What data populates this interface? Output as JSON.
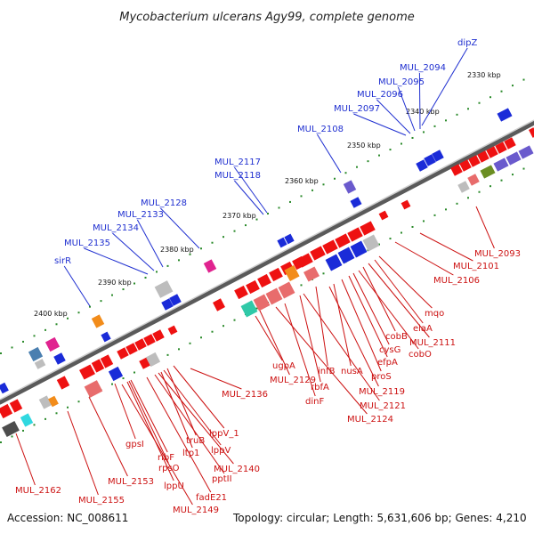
{
  "title": "Mycobacterium ulcerans Agy99, complete genome",
  "footer": {
    "accession": "Accession: NC_008611",
    "info": "Topology: circular; Length: 5,631,606 bp; Genes: 4,210"
  },
  "colors": {
    "forward_label": "#1f2fd0",
    "reverse_label": "#cc1111",
    "backbone": "#777777",
    "tick": "#2a8a2a"
  },
  "kbp_ticks": [
    "2330 kbp",
    "2340 kbp",
    "2350 kbp",
    "2360 kbp",
    "2370 kbp",
    "2380 kbp",
    "2390 kbp",
    "2400 kbp"
  ],
  "forward_genes": [
    "dipZ",
    "MUL_2094",
    "MUL_2095",
    "MUL_2096",
    "MUL_2097",
    "MUL_2108",
    "MUL_2117",
    "MUL_2118",
    "MUL_2128",
    "MUL_2133",
    "MUL_2134",
    "MUL_2135",
    "sirR"
  ],
  "reverse_genes": [
    "MUL_2093",
    "MUL_2101",
    "MUL_2106",
    "mqo",
    "elaA",
    "MUL_2111",
    "cobB",
    "cobO",
    "cysG",
    "efpA",
    "proS",
    "nusA",
    "infB",
    "MUL_2119",
    "rbfA",
    "MUL_2121",
    "ugpA",
    "dinF",
    "MUL_2124",
    "MUL_2129",
    "MUL_2136",
    "lppV_1",
    "truB",
    "lppV",
    "ltp1",
    "MUL_2140",
    "ribF",
    "pptII",
    "rpsO",
    "fadE21",
    "gpsI",
    "lppU",
    "MUL_2149",
    "MUL_2153",
    "MUL_2155",
    "MUL_2162"
  ]
}
